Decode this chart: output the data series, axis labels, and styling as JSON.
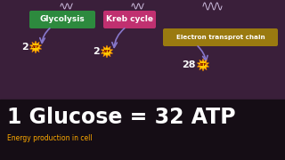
{
  "bg_color": "#3a1f3a",
  "bottom_bar_color": "#150d15",
  "glycolysis_label": "Glycolysis",
  "glycolysis_bg": "#2d8a3e",
  "kreb_label": "Kreb cycle",
  "kreb_bg": "#c03070",
  "electron_label": "Electron transprot chain",
  "electron_bg": "#9a7a10",
  "main_text": "1 Glucose = 32 ATP",
  "sub_text": "Energy production in cell",
  "arrow_color": "#8878cc",
  "atp1_num": "2",
  "atp2_num": "2",
  "atp3_num": "28",
  "squiggle_color": "#ccbbdd",
  "main_fontsize": 17,
  "sub_fontsize": 5.5,
  "label_fontsize": 6.5,
  "num_fontsize": 8
}
